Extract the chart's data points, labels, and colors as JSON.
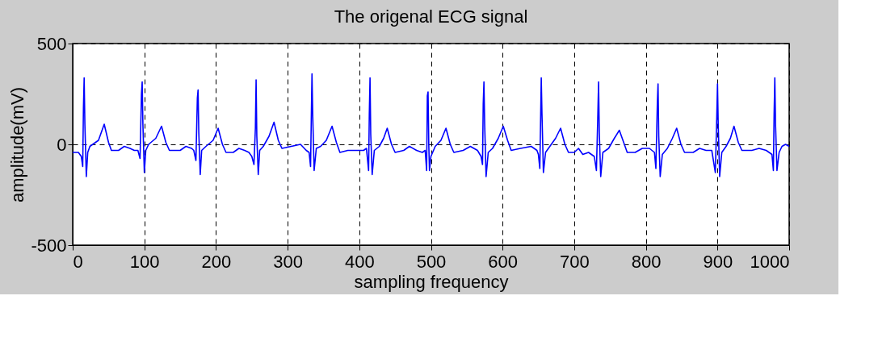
{
  "chart_data": {
    "type": "line",
    "title": "The origenal ECG signal",
    "xlabel": "sampling frequency",
    "ylabel": "amplitude(mV)",
    "xlim": [
      0,
      1000
    ],
    "xticks": [
      0,
      100,
      200,
      300,
      400,
      500,
      600,
      700,
      800,
      900,
      1000
    ],
    "ylim": [
      -500,
      500
    ],
    "yticks": [
      -500,
      0,
      500
    ],
    "grid": true,
    "line_style": "solid",
    "x": [
      0,
      8,
      12,
      14,
      15,
      16,
      17,
      19,
      21,
      24,
      36,
      44,
      50,
      54,
      64,
      72,
      80,
      86,
      91,
      94,
      96,
      97,
      98,
      100,
      102,
      106,
      116,
      124,
      130,
      135,
      150,
      158,
      166,
      169,
      172,
      174,
      175,
      176,
      178,
      180,
      186,
      196,
      203,
      209,
      214,
      224,
      232,
      240,
      246,
      250,
      253,
      255,
      256,
      257,
      259,
      261,
      266,
      274,
      281,
      287,
      292,
      305,
      318,
      326,
      330,
      332,
      333,
      334,
      335,
      337,
      340,
      346,
      354,
      362,
      368,
      373,
      384,
      400,
      406,
      410,
      413,
      414,
      415,
      416,
      418,
      421,
      428,
      434,
      439,
      445,
      450,
      462,
      470,
      480,
      488,
      492,
      494,
      495,
      496,
      497,
      498,
      500,
      506,
      514,
      521,
      527,
      532,
      545,
      555,
      565,
      570,
      572,
      573,
      574,
      575,
      577,
      580,
      586,
      594,
      601,
      607,
      612,
      625,
      640,
      648,
      650,
      652,
      653,
      654,
      655,
      657,
      660,
      666,
      674,
      681,
      687,
      692,
      700,
      706,
      712,
      720,
      728,
      731,
      733,
      734,
      735,
      737,
      740,
      748,
      756,
      763,
      769,
      774,
      785,
      795,
      805,
      812,
      814,
      816,
      817,
      818,
      820,
      823,
      830,
      837,
      843,
      849,
      854,
      866,
      875,
      884,
      892,
      897,
      899,
      900,
      901,
      903,
      906,
      912,
      918,
      923,
      929,
      934,
      948,
      958,
      968,
      976,
      978,
      979,
      980,
      981,
      983,
      986,
      990,
      995,
      1000
    ],
    "series": [
      {
        "color": "#0000ff",
        "values": [
          -40,
          -40,
          -60,
          -110,
          180,
          330,
          100,
          -160,
          -40,
          -10,
          20,
          100,
          10,
          -30,
          -30,
          -10,
          -20,
          -30,
          -30,
          -70,
          250,
          310,
          100,
          -140,
          -30,
          0,
          30,
          90,
          10,
          -30,
          -30,
          -10,
          -20,
          -30,
          -80,
          230,
          270,
          60,
          -150,
          -30,
          -10,
          20,
          80,
          0,
          -40,
          -40,
          -20,
          -30,
          -40,
          -60,
          -100,
          80,
          320,
          40,
          -150,
          -30,
          -10,
          40,
          110,
          20,
          -20,
          -10,
          0,
          -30,
          -40,
          -110,
          120,
          350,
          150,
          -130,
          -20,
          -10,
          20,
          90,
          10,
          -40,
          -30,
          -30,
          -30,
          -20,
          -130,
          150,
          330,
          50,
          -150,
          -30,
          -10,
          30,
          80,
          0,
          -40,
          -30,
          -10,
          -30,
          -40,
          -30,
          -130,
          240,
          260,
          0,
          -130,
          -60,
          -10,
          20,
          80,
          0,
          -40,
          -30,
          -10,
          -30,
          -60,
          -100,
          200,
          310,
          100,
          -160,
          -40,
          -20,
          30,
          90,
          20,
          -30,
          -20,
          -10,
          -30,
          -50,
          -120,
          100,
          330,
          150,
          -140,
          -40,
          -10,
          30,
          80,
          0,
          -40,
          -40,
          -20,
          -50,
          -40,
          -60,
          -130,
          150,
          310,
          60,
          -160,
          -40,
          -20,
          30,
          70,
          10,
          -40,
          -40,
          -20,
          -20,
          -40,
          -120,
          200,
          300,
          40,
          -160,
          -50,
          -20,
          30,
          80,
          0,
          -40,
          -40,
          -20,
          -30,
          -30,
          -140,
          140,
          300,
          100,
          -160,
          -40,
          -10,
          30,
          90,
          10,
          -30,
          -30,
          -20,
          -30,
          -50,
          -130,
          150,
          330,
          100,
          -130,
          -40,
          -10,
          0,
          -10
        ]
      }
    ]
  }
}
